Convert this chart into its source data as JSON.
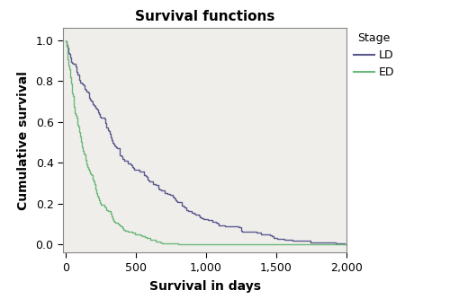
{
  "title": "Survival functions",
  "xlabel": "Survival in days",
  "ylabel": "Cumulative survival",
  "xlim": [
    -20,
    2000
  ],
  "ylim": [
    -0.04,
    1.06
  ],
  "xticks": [
    0,
    500,
    1000,
    1500,
    2000
  ],
  "xtick_labels": [
    "0",
    "500",
    "1,000",
    "1,500",
    "2,000"
  ],
  "yticks": [
    0.0,
    0.2,
    0.4,
    0.6,
    0.8,
    1.0
  ],
  "ytick_labels": [
    "0.0",
    "0.2",
    "0.4",
    "0.6",
    "0.8",
    "1.0"
  ],
  "LD_color": "#5a5a8f",
  "ED_color": "#6ab87a",
  "plot_bg_color": "#f0eeeb",
  "fig_bg_color": "#ffffff",
  "legend_title": "Stage",
  "legend_labels": [
    "LD",
    "ED"
  ],
  "title_fontsize": 11,
  "axis_label_fontsize": 10,
  "tick_fontsize": 9,
  "legend_fontsize": 9,
  "linewidth": 1.0
}
